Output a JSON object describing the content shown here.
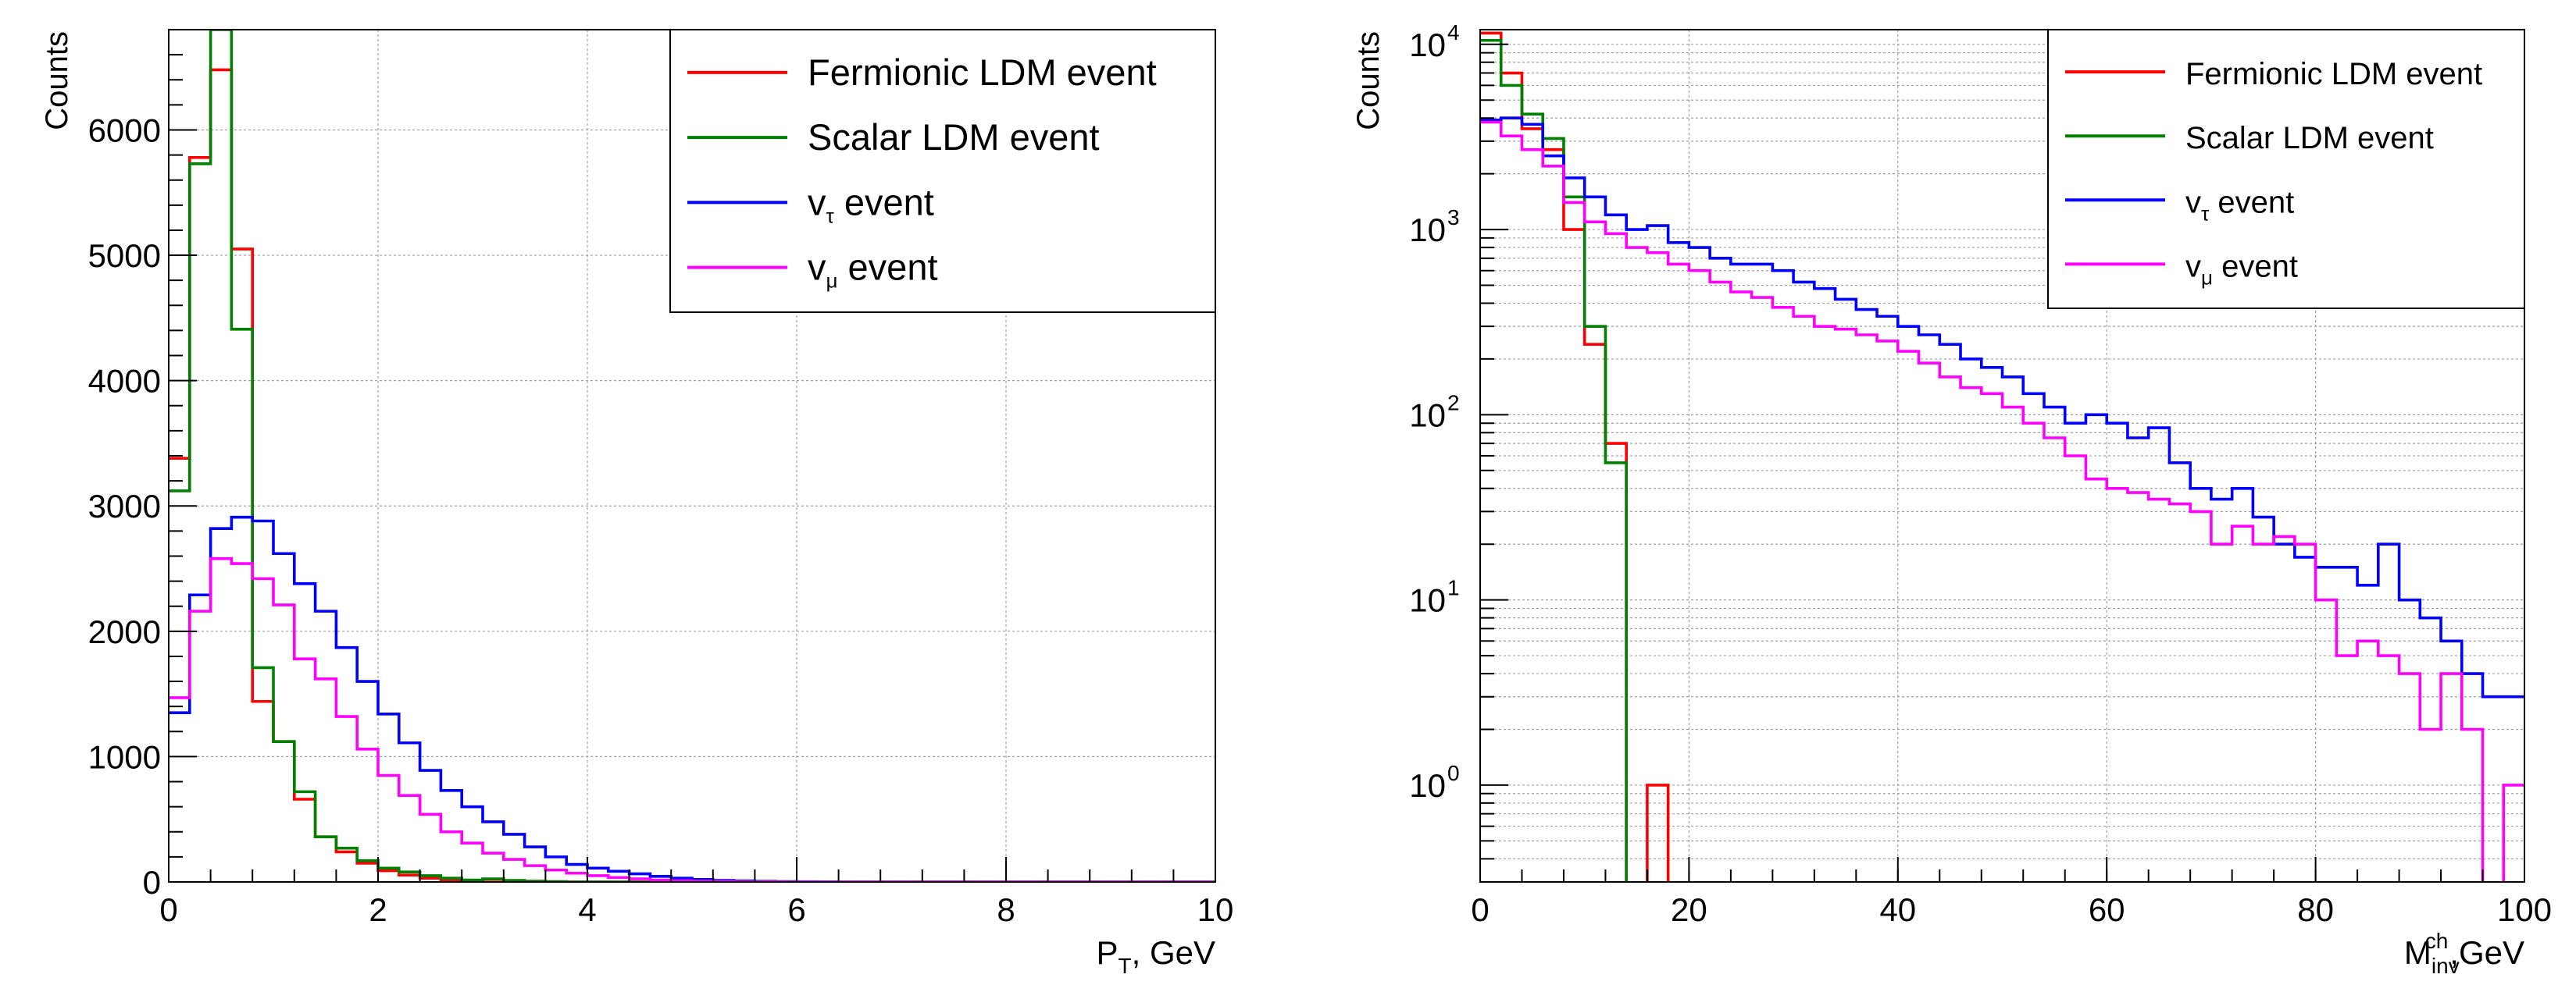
{
  "chart_data": [
    {
      "type": "line",
      "step": true,
      "yscale": "linear",
      "xlabel": "P",
      "xlabel_sub": "T",
      "xlabel_suffix": ", GeV",
      "ylabel": "Counts",
      "xlim": [
        0,
        10
      ],
      "ylim": [
        0,
        6800
      ],
      "xticks": [
        0,
        2,
        4,
        6,
        8,
        10
      ],
      "yticks": [
        0,
        1000,
        2000,
        3000,
        4000,
        5000,
        6000
      ],
      "grid": true,
      "legend_position": "top-right",
      "bin_width": 0.2,
      "series": [
        {
          "name": "Fermionic LDM event",
          "label": "Fermionic LDM event",
          "label_sub": "",
          "label_suffix": "",
          "color": "#ff0000",
          "values": [
            3380,
            5780,
            6480,
            5050,
            1440,
            1120,
            660,
            360,
            240,
            150,
            90,
            55,
            30,
            15,
            8,
            20,
            10,
            5,
            2,
            0,
            0,
            0,
            0,
            0,
            0,
            0,
            0,
            0,
            0,
            0,
            0,
            0,
            0,
            0,
            0,
            0,
            0,
            0,
            0,
            0,
            0,
            0,
            0,
            0,
            0,
            0,
            0,
            0,
            0,
            0
          ]
        },
        {
          "name": "Scalar LDM event",
          "label": "Scalar LDM event",
          "label_sub": "",
          "label_suffix": "",
          "color": "#008000",
          "values": [
            3120,
            5730,
            6800,
            4410,
            1710,
            1120,
            720,
            360,
            270,
            170,
            110,
            80,
            50,
            30,
            15,
            25,
            12,
            6,
            3,
            0,
            0,
            0,
            0,
            0,
            0,
            0,
            0,
            0,
            0,
            0,
            0,
            0,
            0,
            0,
            0,
            0,
            0,
            0,
            0,
            0,
            0,
            0,
            0,
            0,
            0,
            0,
            0,
            0,
            0,
            0
          ]
        },
        {
          "name": "v_tau event",
          "label": "v",
          "label_sub": "τ",
          "label_suffix": " event",
          "color": "#0000ff",
          "values": [
            1350,
            2290,
            2820,
            2910,
            2880,
            2620,
            2380,
            2160,
            1870,
            1600,
            1340,
            1110,
            890,
            730,
            600,
            480,
            380,
            280,
            200,
            140,
            110,
            85,
            65,
            45,
            30,
            20,
            12,
            8,
            5,
            3,
            2,
            1,
            0,
            0,
            0,
            0,
            0,
            0,
            0,
            0,
            0,
            0,
            0,
            0,
            0,
            0,
            0,
            0,
            0,
            0
          ]
        },
        {
          "name": "v_mu event",
          "label": "v",
          "label_sub": "μ",
          "label_suffix": " event",
          "color": "#ff00ff",
          "values": [
            1470,
            2160,
            2580,
            2540,
            2420,
            2210,
            1780,
            1620,
            1320,
            1060,
            850,
            690,
            540,
            400,
            310,
            230,
            180,
            130,
            95,
            70,
            50,
            35,
            25,
            15,
            10,
            6,
            4,
            2,
            1,
            0,
            0,
            0,
            0,
            0,
            0,
            0,
            0,
            0,
            0,
            0,
            0,
            0,
            0,
            0,
            0,
            0,
            0,
            0,
            0,
            0
          ]
        }
      ]
    },
    {
      "type": "line",
      "step": true,
      "yscale": "log",
      "xlabel": "M",
      "xlabel_sub": "inv",
      "xlabel_sup": "ch",
      "xlabel_suffix": ",GeV",
      "ylabel": "Counts",
      "xlim": [
        0,
        100
      ],
      "ylim": [
        0.3,
        12000
      ],
      "xticks": [
        0,
        20,
        40,
        60,
        80,
        100
      ],
      "yticks": [
        1,
        10,
        100,
        1000,
        10000
      ],
      "ytick_labels": [
        {
          "base": "10",
          "exp": "0"
        },
        {
          "base": "10",
          "exp": "1"
        },
        {
          "base": "10",
          "exp": "2"
        },
        {
          "base": "10",
          "exp": "3"
        },
        {
          "base": "10",
          "exp": "4"
        }
      ],
      "grid": true,
      "legend_position": "top-right",
      "bin_width": 2,
      "series": [
        {
          "name": "Fermionic LDM event",
          "label": "Fermionic LDM event",
          "label_sub": "",
          "label_suffix": "",
          "color": "#ff0000",
          "values": [
            11500,
            7000,
            3500,
            2700,
            1000,
            240,
            70,
            0,
            1,
            0,
            0,
            0,
            0,
            0,
            0,
            0,
            0,
            0,
            0,
            0,
            0,
            0,
            0,
            0,
            0,
            0,
            0,
            0,
            0,
            0,
            0,
            0,
            0,
            0,
            0,
            0,
            0,
            0,
            0,
            0,
            0,
            0,
            0,
            0,
            0,
            0,
            0,
            0,
            0,
            0
          ]
        },
        {
          "name": "Scalar LDM event",
          "label": "Scalar LDM event",
          "label_sub": "",
          "label_suffix": "",
          "color": "#008000",
          "values": [
            10500,
            6000,
            4200,
            3100,
            1500,
            300,
            55,
            0,
            0,
            0,
            0,
            0,
            0,
            0,
            0,
            0,
            0,
            0,
            0,
            0,
            0,
            0,
            0,
            0,
            0,
            0,
            0,
            0,
            0,
            0,
            0,
            0,
            0,
            0,
            0,
            0,
            0,
            0,
            0,
            0,
            0,
            0,
            0,
            0,
            0,
            0,
            0,
            0,
            0,
            0
          ]
        },
        {
          "name": "v_tau event",
          "label": "v",
          "label_sub": "τ",
          "label_suffix": " event",
          "color": "#0000ff",
          "values": [
            3900,
            4000,
            3700,
            2500,
            1900,
            1500,
            1200,
            1000,
            1050,
            850,
            800,
            700,
            650,
            650,
            600,
            520,
            480,
            420,
            370,
            340,
            300,
            270,
            240,
            200,
            180,
            160,
            130,
            110,
            90,
            100,
            90,
            75,
            85,
            55,
            40,
            35,
            40,
            28,
            20,
            17,
            15,
            15,
            12,
            20,
            10,
            8,
            6,
            4,
            3,
            3
          ]
        },
        {
          "name": "v_mu event",
          "label": "v",
          "label_sub": "μ",
          "label_suffix": " event",
          "color": "#ff00ff",
          "values": [
            3800,
            3200,
            2700,
            2200,
            1400,
            1100,
            950,
            800,
            750,
            650,
            600,
            520,
            460,
            430,
            380,
            340,
            300,
            290,
            270,
            250,
            220,
            190,
            160,
            140,
            130,
            110,
            90,
            75,
            60,
            45,
            40,
            38,
            35,
            33,
            30,
            20,
            25,
            20,
            22,
            20,
            10,
            5,
            6,
            5,
            4,
            2,
            4,
            2,
            0,
            1
          ]
        }
      ]
    }
  ]
}
